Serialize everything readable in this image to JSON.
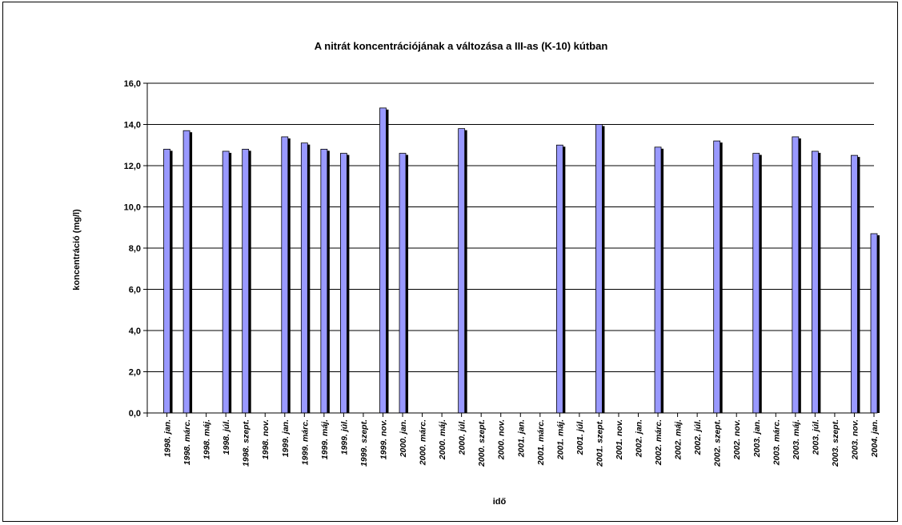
{
  "chart_data": {
    "type": "bar",
    "title": "A nitrát koncentrációjának a változása a III-as (K-10) kútban",
    "xlabel": "idő",
    "ylabel": "koncentráció (mg/l)",
    "ylim": [
      0,
      16
    ],
    "yticks": [
      "0,0",
      "2,0",
      "4,0",
      "6,0",
      "8,0",
      "10,0",
      "12,0",
      "14,0",
      "16,0"
    ],
    "grid": true,
    "legend": "none",
    "bar_color": "#9999ff",
    "bar_shadow_color": "#000000",
    "categories": [
      "1998. jan.",
      "1998. márc.",
      "1998. máj.",
      "1998. júl.",
      "1998. szept.",
      "1998. nov.",
      "1999. jan.",
      "1999. márc.",
      "1999. máj.",
      "1999. júl.",
      "1999. szept.",
      "1999. nov.",
      "2000. jan.",
      "2000. márc.",
      "2000. máj.",
      "2000. júl.",
      "2000. szept.",
      "2000. nov.",
      "2001. jan.",
      "2001. márc.",
      "2001. máj.",
      "2001. júl.",
      "2001. szept.",
      "2001. nov.",
      "2002. jan.",
      "2002. márc.",
      "2002. máj.",
      "2002. júl.",
      "2002. szept.",
      "2002. nov.",
      "2003. jan.",
      "2003. márc.",
      "2003. máj.",
      "2003. júl.",
      "2003. szept.",
      "2003. nov.",
      "2004. jan."
    ],
    "values": [
      12.8,
      13.7,
      null,
      12.7,
      12.8,
      null,
      13.4,
      13.1,
      12.8,
      12.6,
      null,
      14.8,
      12.6,
      null,
      null,
      13.8,
      null,
      null,
      null,
      null,
      13.0,
      null,
      14.0,
      null,
      null,
      12.9,
      null,
      null,
      13.2,
      null,
      12.6,
      null,
      13.4,
      12.7,
      null,
      12.5,
      8.7
    ]
  }
}
